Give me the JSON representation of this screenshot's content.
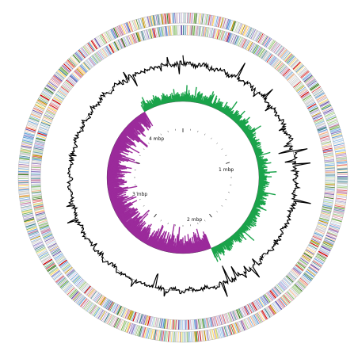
{
  "figure": {
    "type": "circular-genome-map",
    "background": "#ffffff",
    "scale_labels": [
      "1 mbp",
      "2 mbp",
      "3 mbp",
      "4 mbp"
    ],
    "cog_palette": [
      "#5b9bd5",
      "#70ad47",
      "#a9d18e",
      "#8e7cc3",
      "#c27ba0",
      "#ffd966",
      "#f4b183",
      "#76a5af",
      "#b4a7d6",
      "#93c47d",
      "#e06666",
      "#6fa8dc",
      "#c9c9c9",
      "#d5a6bd",
      "#38761d",
      "#674ea7",
      "#45818e",
      "#bf9000",
      "#cc0000",
      "#9fc5e8"
    ],
    "rings": {
      "forward_cds": {
        "color_scheme": "COG"
      },
      "reverse_cds": {
        "color_scheme": "COG"
      },
      "gc_content": {
        "color": "#000000"
      },
      "gc_skew_positive": {
        "color": "#1aa34a"
      },
      "gc_skew_negative": {
        "color": "#9b2a9b"
      }
    }
  }
}
